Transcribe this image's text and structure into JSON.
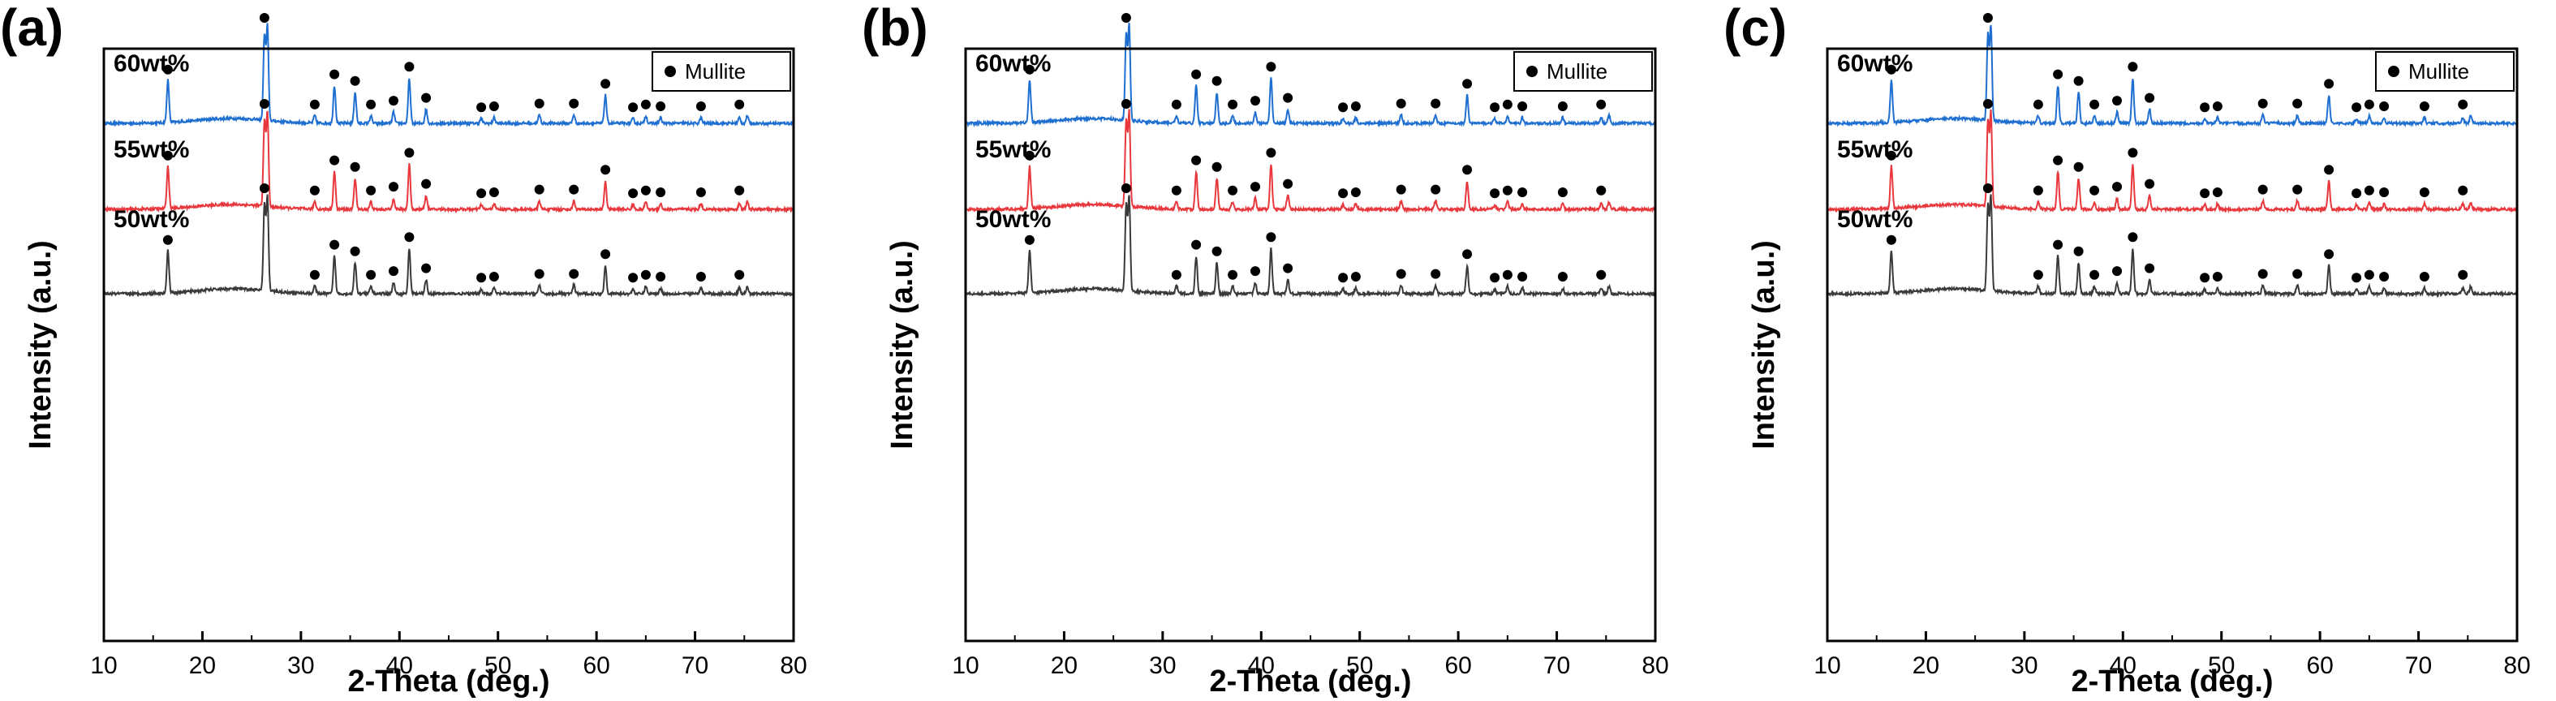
{
  "figure": {
    "panels": [
      "(a)",
      "(b)",
      "(c)"
    ],
    "marker_color": "#000000"
  },
  "chart_data": [
    {
      "type": "line",
      "panel_label": "(a)",
      "xlabel": "2-Theta (deg.)",
      "ylabel": "Intensity (a.u.)",
      "xlim": [
        10,
        80
      ],
      "xticks": [
        10,
        20,
        30,
        40,
        50,
        60,
        70,
        80
      ],
      "y_ticks_shown": false,
      "grid": false,
      "legend": {
        "placement": "top-right",
        "entries": [
          {
            "symbol": "filled-circle",
            "label": "Mullite"
          }
        ]
      },
      "series": [
        {
          "name": "60wt%",
          "color": "#1f6fd1"
        },
        {
          "name": "55wt%",
          "color": "#e8383d"
        },
        {
          "name": "50wt%",
          "color": "#3a3a3a"
        }
      ],
      "mullite_peaks": [
        {
          "two_theta": 16.5,
          "rel_intensity": 0.45
        },
        {
          "two_theta": 26.3,
          "rel_intensity": 0.9
        },
        {
          "two_theta": 26.6,
          "rel_intensity": 1.0
        },
        {
          "two_theta": 31.4,
          "rel_intensity": 0.08
        },
        {
          "two_theta": 33.4,
          "rel_intensity": 0.4
        },
        {
          "two_theta": 35.5,
          "rel_intensity": 0.33
        },
        {
          "two_theta": 37.1,
          "rel_intensity": 0.08
        },
        {
          "two_theta": 39.4,
          "rel_intensity": 0.12
        },
        {
          "two_theta": 41.0,
          "rel_intensity": 0.48
        },
        {
          "two_theta": 42.7,
          "rel_intensity": 0.15
        },
        {
          "two_theta": 48.3,
          "rel_intensity": 0.05
        },
        {
          "two_theta": 49.6,
          "rel_intensity": 0.06
        },
        {
          "two_theta": 54.2,
          "rel_intensity": 0.09
        },
        {
          "two_theta": 57.7,
          "rel_intensity": 0.09
        },
        {
          "two_theta": 60.9,
          "rel_intensity": 0.3
        },
        {
          "two_theta": 63.7,
          "rel_intensity": 0.05
        },
        {
          "two_theta": 65.0,
          "rel_intensity": 0.08
        },
        {
          "two_theta": 66.5,
          "rel_intensity": 0.06
        },
        {
          "two_theta": 70.6,
          "rel_intensity": 0.06
        },
        {
          "two_theta": 74.5,
          "rel_intensity": 0.06
        },
        {
          "two_theta": 75.3,
          "rel_intensity": 0.08
        }
      ]
    },
    {
      "type": "line",
      "panel_label": "(b)",
      "xlabel": "2-Theta (deg.)",
      "ylabel": "Intensity (a.u.)",
      "xlim": [
        10,
        80
      ],
      "xticks": [
        10,
        20,
        30,
        40,
        50,
        60,
        70,
        80
      ],
      "y_ticks_shown": false,
      "grid": false,
      "legend": {
        "placement": "top-right",
        "entries": [
          {
            "symbol": "filled-circle",
            "label": "Mullite"
          }
        ]
      },
      "series": [
        {
          "name": "60wt%",
          "color": "#1f6fd1"
        },
        {
          "name": "55wt%",
          "color": "#e8383d"
        },
        {
          "name": "50wt%",
          "color": "#3a3a3a"
        }
      ],
      "mullite_peaks": [
        {
          "two_theta": 16.5,
          "rel_intensity": 0.45
        },
        {
          "two_theta": 26.3,
          "rel_intensity": 0.9
        },
        {
          "two_theta": 26.6,
          "rel_intensity": 1.0
        },
        {
          "two_theta": 31.4,
          "rel_intensity": 0.08
        },
        {
          "two_theta": 33.4,
          "rel_intensity": 0.4
        },
        {
          "two_theta": 35.5,
          "rel_intensity": 0.33
        },
        {
          "two_theta": 37.1,
          "rel_intensity": 0.08
        },
        {
          "two_theta": 39.4,
          "rel_intensity": 0.12
        },
        {
          "two_theta": 41.0,
          "rel_intensity": 0.48
        },
        {
          "two_theta": 42.7,
          "rel_intensity": 0.15
        },
        {
          "two_theta": 48.3,
          "rel_intensity": 0.05
        },
        {
          "two_theta": 49.6,
          "rel_intensity": 0.06
        },
        {
          "two_theta": 54.2,
          "rel_intensity": 0.09
        },
        {
          "two_theta": 57.7,
          "rel_intensity": 0.09
        },
        {
          "two_theta": 60.9,
          "rel_intensity": 0.3
        },
        {
          "two_theta": 63.7,
          "rel_intensity": 0.05
        },
        {
          "two_theta": 65.0,
          "rel_intensity": 0.08
        },
        {
          "two_theta": 66.5,
          "rel_intensity": 0.06
        },
        {
          "two_theta": 70.6,
          "rel_intensity": 0.06
        },
        {
          "two_theta": 74.5,
          "rel_intensity": 0.06
        },
        {
          "two_theta": 75.3,
          "rel_intensity": 0.08
        }
      ]
    },
    {
      "type": "line",
      "panel_label": "(c)",
      "xlabel": "2-Theta (deg.)",
      "ylabel": "Intensity (a.u.)",
      "xlim": [
        10,
        80
      ],
      "xticks": [
        10,
        20,
        30,
        40,
        50,
        60,
        70,
        80
      ],
      "y_ticks_shown": false,
      "grid": false,
      "legend": {
        "placement": "top-right",
        "entries": [
          {
            "symbol": "filled-circle",
            "label": "Mullite"
          }
        ]
      },
      "series": [
        {
          "name": "60wt%",
          "color": "#1f6fd1"
        },
        {
          "name": "55wt%",
          "color": "#e8383d"
        },
        {
          "name": "50wt%",
          "color": "#3a3a3a"
        }
      ],
      "mullite_peaks": [
        {
          "two_theta": 16.5,
          "rel_intensity": 0.45
        },
        {
          "two_theta": 26.3,
          "rel_intensity": 0.9
        },
        {
          "two_theta": 26.6,
          "rel_intensity": 1.0
        },
        {
          "two_theta": 31.4,
          "rel_intensity": 0.08
        },
        {
          "two_theta": 33.4,
          "rel_intensity": 0.4
        },
        {
          "two_theta": 35.5,
          "rel_intensity": 0.33
        },
        {
          "two_theta": 37.1,
          "rel_intensity": 0.08
        },
        {
          "two_theta": 39.4,
          "rel_intensity": 0.12
        },
        {
          "two_theta": 41.0,
          "rel_intensity": 0.48
        },
        {
          "two_theta": 42.7,
          "rel_intensity": 0.15
        },
        {
          "two_theta": 48.3,
          "rel_intensity": 0.05
        },
        {
          "two_theta": 49.6,
          "rel_intensity": 0.06
        },
        {
          "two_theta": 54.2,
          "rel_intensity": 0.09
        },
        {
          "two_theta": 57.7,
          "rel_intensity": 0.09
        },
        {
          "two_theta": 60.9,
          "rel_intensity": 0.3
        },
        {
          "two_theta": 63.7,
          "rel_intensity": 0.05
        },
        {
          "two_theta": 65.0,
          "rel_intensity": 0.08
        },
        {
          "two_theta": 66.5,
          "rel_intensity": 0.06
        },
        {
          "two_theta": 70.6,
          "rel_intensity": 0.06
        },
        {
          "two_theta": 74.5,
          "rel_intensity": 0.06
        },
        {
          "two_theta": 75.3,
          "rel_intensity": 0.08
        }
      ]
    }
  ]
}
